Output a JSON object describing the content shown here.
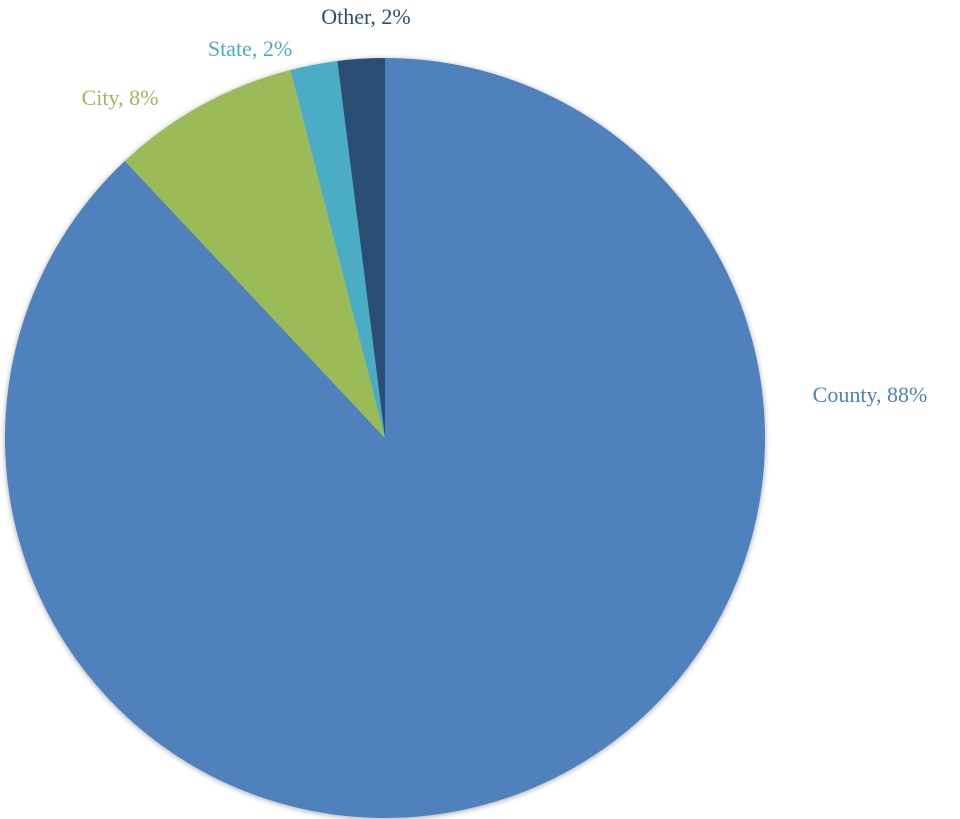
{
  "chart_data": {
    "type": "pie",
    "slices": [
      {
        "label": "County",
        "value": 88,
        "value_label": "88%",
        "color": "#4f81bd"
      },
      {
        "label": "City",
        "value": 8,
        "value_label": "8%",
        "color": "#9bbb59"
      },
      {
        "label": "State",
        "value": 2,
        "value_label": "2%",
        "color": "#4bacc6"
      },
      {
        "label": "Other",
        "value": 2,
        "value_label": "2%",
        "color": "#2c4d75"
      }
    ],
    "data_labels": "category and percentage outside slices",
    "legend": "none"
  }
}
